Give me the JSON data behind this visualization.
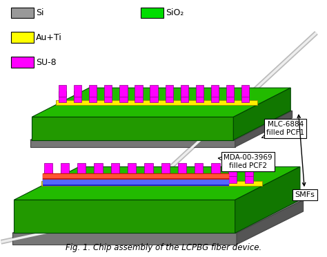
{
  "title": "Fig. 1. Chip assembly of the LCPBG fiber device.",
  "legend_items": [
    {
      "label": "Si",
      "color": "#999999"
    },
    {
      "label": "SiO₂",
      "color": "#00dd00"
    },
    {
      "label": "Au+Ti",
      "color": "#ffff00"
    },
    {
      "label": "SU-8",
      "color": "#ff00ff"
    }
  ],
  "background_color": "#ffffff",
  "fig_width": 4.74,
  "fig_height": 3.72,
  "dpi": 100,
  "green": "#22bb00",
  "green_dark": "#117700",
  "green_mid": "#229900",
  "gray_si": "#999999",
  "gray_si_dark": "#555555",
  "gray_si_mid": "#777777",
  "yellow": "#ffee00",
  "magenta": "#ff00ff",
  "blue_fiber": "#2244ff",
  "red_fiber": "#cc2200"
}
